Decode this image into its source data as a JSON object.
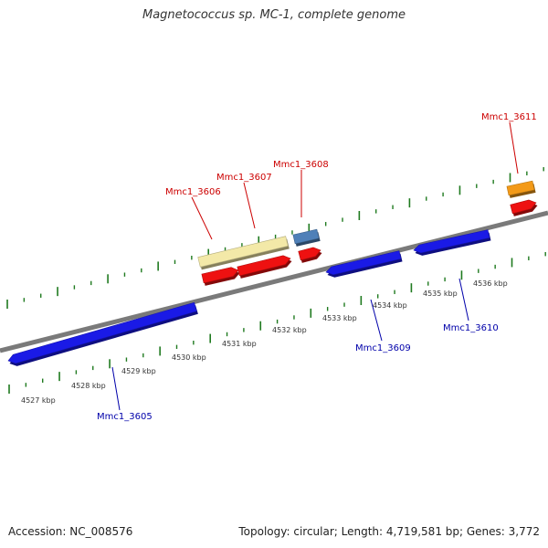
{
  "title": "Magnetococcus sp. MC-1, complete genome",
  "footer": {
    "accession": "Accession: NC_008576",
    "summary": "Topology: circular; Length: 4,719,581 bp; Genes: 3,772"
  },
  "colors": {
    "forward_cds": "#ee1111",
    "reverse_cds": "#1a1ae6",
    "hypothetical": "#f3e9a8",
    "rna": "#4f80b8",
    "other": "#f39a18",
    "backbone": "#7a7a7a",
    "tick": "#1f7a1f",
    "label_forward": "#cc0000",
    "label_reverse": "#0000aa"
  },
  "kbp_labels": [
    "4527 kbp",
    "4528 kbp",
    "4529 kbp",
    "4530 kbp",
    "4531 kbp",
    "4532 kbp",
    "4533 kbp",
    "4534 kbp",
    "4535 kbp",
    "4536 kbp"
  ],
  "gene_labels": [
    {
      "name": "Mmc1_3606",
      "strand": "forward"
    },
    {
      "name": "Mmc1_3607",
      "strand": "forward"
    },
    {
      "name": "Mmc1_3608",
      "strand": "forward"
    },
    {
      "name": "Mmc1_3611",
      "strand": "forward"
    },
    {
      "name": "Mmc1_3605",
      "strand": "reverse"
    },
    {
      "name": "Mmc1_3609",
      "strand": "reverse"
    },
    {
      "name": "Mmc1_3610",
      "strand": "reverse"
    }
  ]
}
